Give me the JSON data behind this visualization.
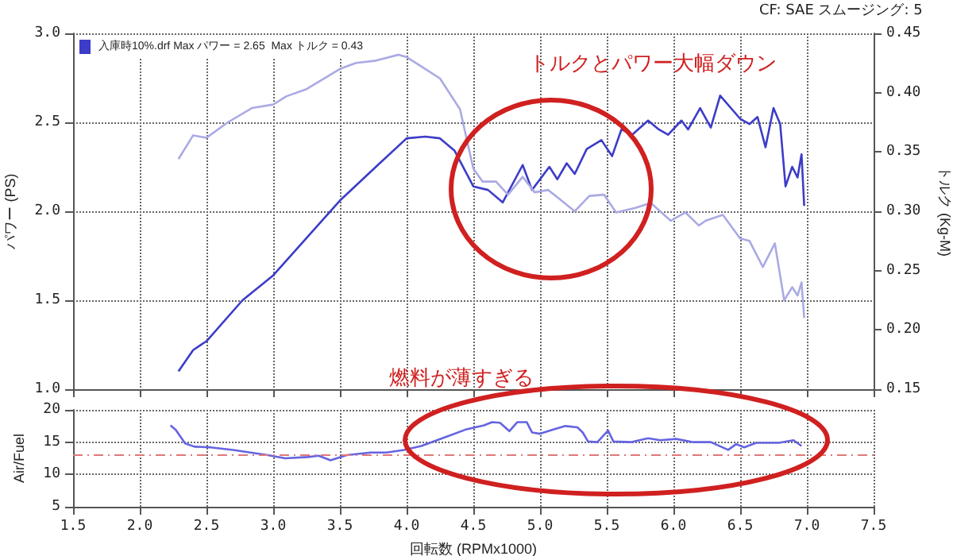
{
  "chart_data": [
    {
      "type": "line",
      "ylabel": "パワー (PS)",
      "y2label": "トルク (Kg-M)",
      "annotations": [
        "トルクとパワー大幅ダウン",
        "CF: SAE   スムージング: 5"
      ],
      "xlim": [
        1.5,
        7.5
      ],
      "xticks": [
        1.5,
        2,
        2.5,
        3,
        3.5,
        4,
        4.5,
        5,
        5.5,
        6,
        6.5,
        7,
        7.5
      ],
      "ylim": [
        1,
        3
      ],
      "yticks": [
        {
          "value": 1,
          "label": "1.0"
        },
        {
          "value": 1.5,
          "label": "1.5"
        },
        {
          "value": 2,
          "label": "2.0"
        },
        {
          "value": 2.5,
          "label": "2.5"
        },
        {
          "value": 3,
          "label": "3.0"
        }
      ],
      "y2lim": [
        0.15,
        0.45
      ],
      "y2ticks": [
        {
          "value": 0.15,
          "label": "0.15"
        },
        {
          "value": 0.2,
          "label": "0.20"
        },
        {
          "value": 0.25,
          "label": "0.25"
        },
        {
          "value": 0.3,
          "label": "0.30"
        },
        {
          "value": 0.35,
          "label": "0.35"
        },
        {
          "value": 0.4,
          "label": "0.40"
        },
        {
          "value": 0.45,
          "label": "0.45"
        }
      ],
      "tick_labels": "y",
      "grid": true,
      "legend": "top left",
      "marker": "none",
      "line_style": "solid",
      "series": [
        {
          "name": "入庫時10%.drf Max パワー = 2.65  Max トルク = 0.43",
          "color": "#3c3cc8",
          "x": [
            2.29,
            2.4,
            2.5,
            2.77,
            3.0,
            3.25,
            3.5,
            3.77,
            4.0,
            4.14,
            4.25,
            4.36,
            4.5,
            4.61,
            4.72,
            4.87,
            4.94,
            5.07,
            5.13,
            5.2,
            5.26,
            5.35,
            5.46,
            5.54,
            5.61,
            5.69,
            5.81,
            5.89,
            5.96,
            6.06,
            6.11,
            6.2,
            6.28,
            6.35,
            6.5,
            6.57,
            6.63,
            6.69,
            6.75,
            6.8,
            6.84,
            6.89,
            6.93,
            6.96,
            6.98
          ],
          "values": [
            1.1,
            1.22,
            1.27,
            1.5,
            1.64,
            1.85,
            2.06,
            2.25,
            2.41,
            2.42,
            2.41,
            2.34,
            2.14,
            2.12,
            2.05,
            2.26,
            2.12,
            2.25,
            2.18,
            2.27,
            2.21,
            2.35,
            2.4,
            2.31,
            2.46,
            2.43,
            2.51,
            2.46,
            2.43,
            2.51,
            2.46,
            2.58,
            2.47,
            2.65,
            2.52,
            2.49,
            2.53,
            2.36,
            2.58,
            2.49,
            2.14,
            2.25,
            2.19,
            2.32,
            2.03
          ]
        },
        {
          "color": "#aaaae4",
          "axis": "y2",
          "x": [
            2.29,
            2.4,
            2.5,
            2.66,
            2.84,
            3.0,
            3.1,
            3.25,
            3.5,
            3.62,
            3.77,
            3.94,
            4.0,
            4.14,
            4.25,
            4.4,
            4.5,
            4.57,
            4.67,
            4.76,
            4.87,
            4.96,
            5.06,
            5.15,
            5.26,
            5.37,
            5.48,
            5.57,
            5.72,
            5.83,
            5.98,
            6.09,
            6.19,
            6.24,
            6.37,
            6.5,
            6.57,
            6.67,
            6.76,
            6.83,
            6.89,
            6.93,
            6.96,
            6.98
          ],
          "values": [
            0.344,
            0.364,
            0.362,
            0.375,
            0.387,
            0.39,
            0.397,
            0.403,
            0.42,
            0.425,
            0.427,
            0.432,
            0.43,
            0.42,
            0.412,
            0.386,
            0.336,
            0.325,
            0.325,
            0.314,
            0.329,
            0.316,
            0.318,
            0.31,
            0.3,
            0.313,
            0.314,
            0.299,
            0.303,
            0.307,
            0.292,
            0.299,
            0.288,
            0.292,
            0.297,
            0.277,
            0.275,
            0.253,
            0.273,
            0.225,
            0.236,
            0.229,
            0.24,
            0.21
          ]
        }
      ]
    },
    {
      "type": "line",
      "xlabel": "回転数 (RPMx1000)",
      "ylabel": "Air/Fuel",
      "annotations": [
        "燃料が薄すぎる"
      ],
      "xlim": [
        1.5,
        7.5
      ],
      "xticks": [
        {
          "value": 1.5,
          "label": "1.5"
        },
        {
          "value": 2,
          "label": "2.0"
        },
        {
          "value": 2.5,
          "label": "2.5"
        },
        {
          "value": 3,
          "label": "3.0"
        },
        {
          "value": 3.5,
          "label": "3.5"
        },
        {
          "value": 4,
          "label": "4.0"
        },
        {
          "value": 4.5,
          "label": "4.5"
        },
        {
          "value": 5,
          "label": "5.0"
        },
        {
          "value": 5.5,
          "label": "5.5"
        },
        {
          "value": 6,
          "label": "6.0"
        },
        {
          "value": 6.5,
          "label": "6.5"
        },
        {
          "value": 7,
          "label": "7.0"
        },
        {
          "value": 7.5,
          "label": "7.5"
        }
      ],
      "ylim": [
        5,
        20
      ],
      "yticks": [
        5,
        10,
        15,
        20
      ],
      "grid": true,
      "marker": "none",
      "line_style": "solid",
      "ref_lines": [
        {
          "axis": "y",
          "value": 13,
          "color": "#e07878",
          "line_style": "dashed"
        }
      ],
      "series": [
        {
          "color": "#6464e0",
          "x": [
            2.23,
            2.27,
            2.34,
            2.41,
            2.53,
            2.7,
            2.83,
            2.96,
            3.09,
            3.26,
            3.34,
            3.43,
            3.55,
            3.73,
            3.85,
            3.98,
            4.11,
            4.28,
            4.45,
            4.58,
            4.64,
            4.7,
            4.77,
            4.83,
            4.9,
            4.94,
            5.0,
            5.09,
            5.19,
            5.28,
            5.32,
            5.36,
            5.43,
            5.51,
            5.55,
            5.68,
            5.81,
            5.9,
            6.02,
            6.15,
            6.28,
            6.41,
            6.47,
            6.53,
            6.62,
            6.79,
            6.9,
            6.96
          ],
          "values": [
            17.6,
            16.9,
            14.8,
            14.3,
            14.2,
            13.8,
            13.4,
            13.0,
            12.5,
            12.7,
            12.9,
            12.2,
            13.0,
            13.4,
            13.4,
            13.8,
            14.4,
            15.7,
            17.0,
            17.6,
            18.1,
            18.0,
            16.7,
            18.1,
            18.1,
            16.5,
            16.3,
            16.9,
            17.5,
            17.3,
            16.5,
            15.1,
            15.0,
            16.8,
            15.1,
            15.0,
            15.6,
            15.3,
            15.5,
            15.0,
            15.0,
            13.8,
            14.7,
            14.2,
            14.9,
            14.9,
            15.3,
            14.4
          ]
        }
      ]
    }
  ]
}
